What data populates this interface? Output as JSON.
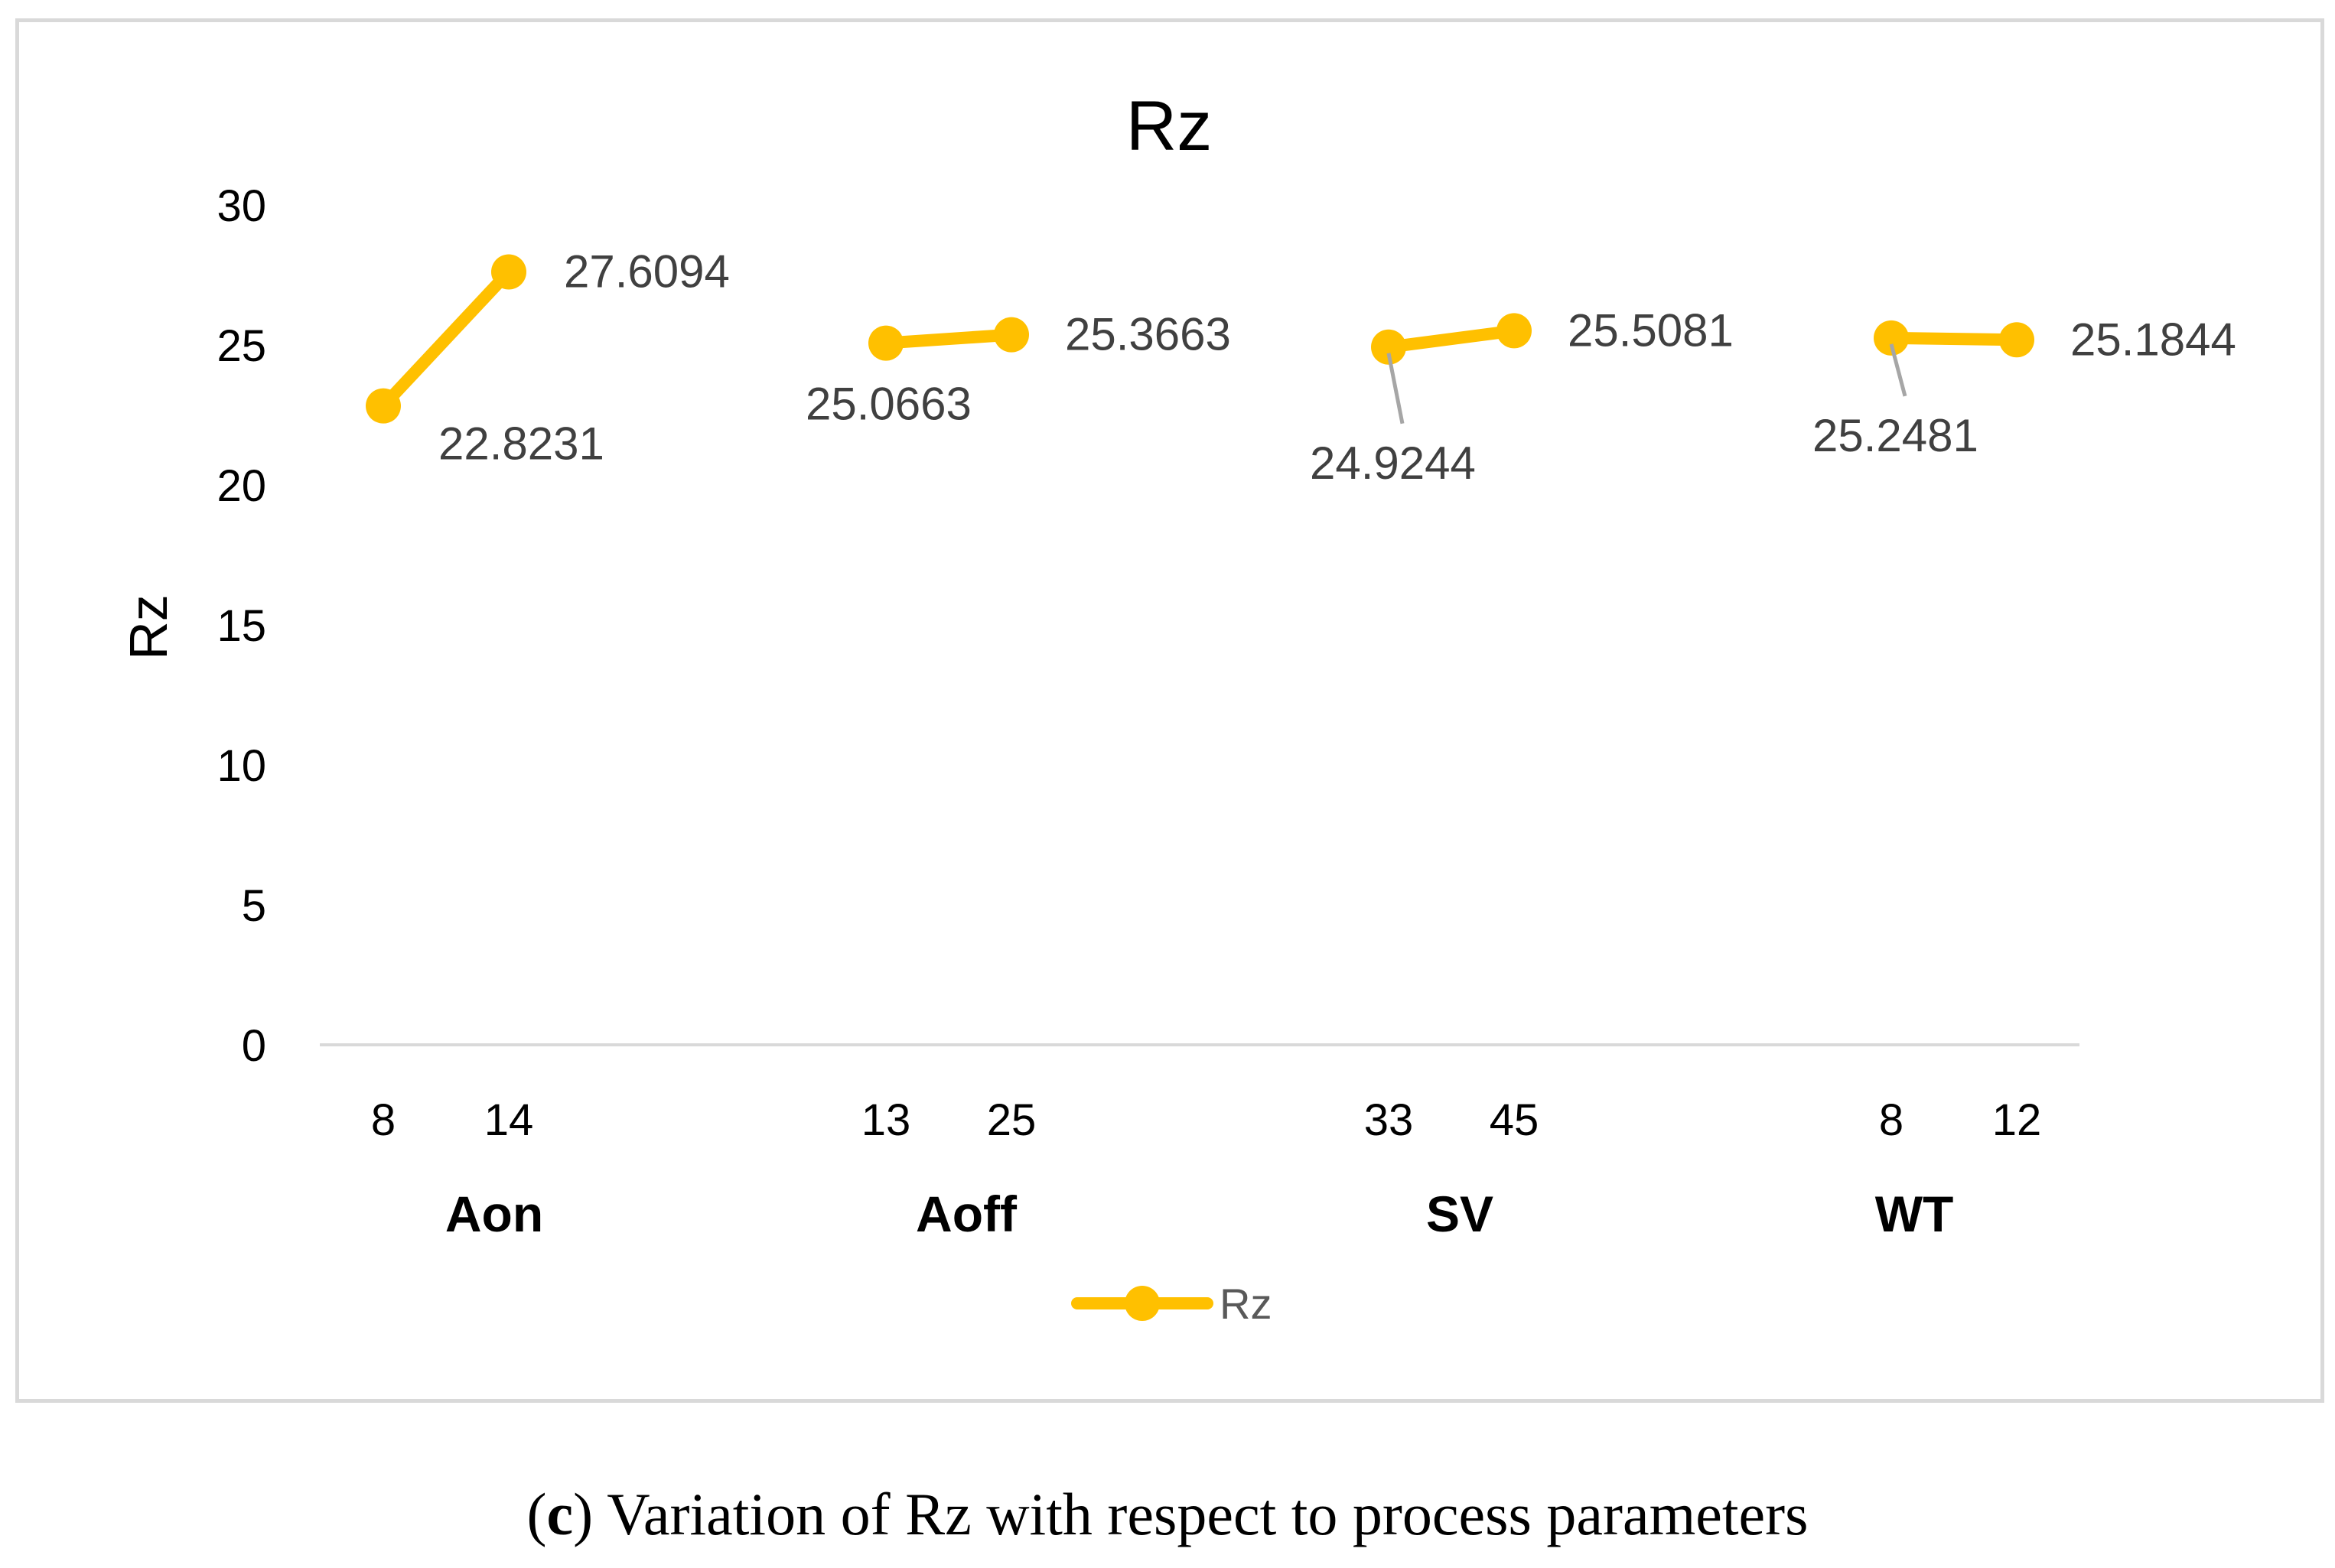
{
  "chart_data": {
    "type": "line",
    "title": "Rz",
    "ylabel": "Rz",
    "xlabel": "",
    "ylim": [
      0,
      30
    ],
    "yticks": [
      0,
      5,
      10,
      15,
      20,
      25,
      30
    ],
    "series_name": "Rz",
    "line_color": "#FFC000",
    "leader_color": "#a6a6a6",
    "groups": [
      {
        "name": "Aon",
        "levels": [
          "8",
          "14"
        ],
        "values": [
          22.8231,
          27.6094
        ],
        "labels": [
          "22.8231",
          "27.6094"
        ]
      },
      {
        "name": "Aoff",
        "levels": [
          "13",
          "25"
        ],
        "values": [
          25.0663,
          25.3663
        ],
        "labels": [
          "25.0663",
          "25.3663"
        ]
      },
      {
        "name": "SV",
        "levels": [
          "33",
          "45"
        ],
        "values": [
          24.9244,
          25.5081
        ],
        "labels": [
          "24.9244",
          "25.5081"
        ]
      },
      {
        "name": "WT",
        "levels": [
          "8",
          "12"
        ],
        "values": [
          25.2481,
          25.1844
        ],
        "labels": [
          "25.2481",
          "25.1844"
        ]
      }
    ],
    "legend": {
      "position": "bottom",
      "entries": [
        "Rz"
      ]
    }
  },
  "caption": {
    "prefix": "(",
    "letter": "c",
    "suffix": ") Variation of Rz with respect to process parameters"
  }
}
